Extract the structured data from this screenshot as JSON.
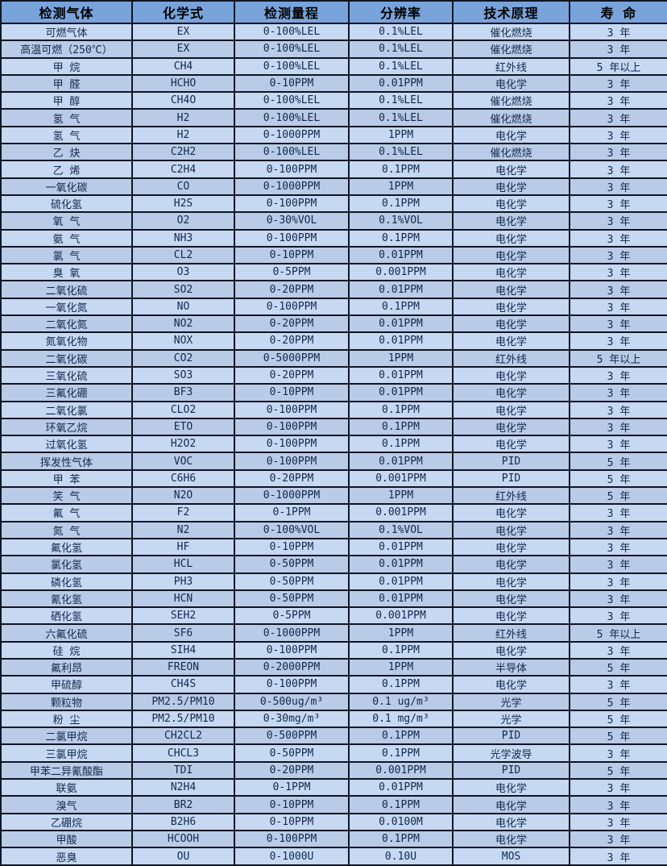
{
  "colors": {
    "header_bg": "#79A3DB",
    "row_light": "#C6D8F2",
    "row_dark": "#B9CBE7",
    "border": "#0E1624",
    "header_text": "#000000",
    "body_text": "#14284B"
  },
  "chart_data": {
    "type": "table",
    "columns": [
      "检测气体",
      "化学式",
      "检测量程",
      "分辨率",
      "技术原理",
      "寿 命"
    ],
    "column_keys": [
      "gas",
      "formula",
      "range",
      "resolution",
      "principle",
      "lifespan"
    ],
    "rows": [
      [
        "可燃气体",
        "EX",
        "0-100%LEL",
        "0.1%LEL",
        "催化燃烧",
        "3 年"
      ],
      [
        "高温可燃（250℃）",
        "EX",
        "0-100%LEL",
        "0.1%LEL",
        "催化燃烧",
        "3 年"
      ],
      [
        "甲 烷",
        "CH4",
        "0-100%LEL",
        "0.1%LEL",
        "红外线",
        "5 年以上"
      ],
      [
        "甲 醛",
        "HCHO",
        "0-10PPM",
        "0.01PPM",
        "电化学",
        "3 年"
      ],
      [
        "甲 醇",
        "CH4O",
        "0-100%LEL",
        "0.1%LEL",
        "催化燃烧",
        "3 年"
      ],
      [
        "氢 气",
        "H2",
        "0-100%LEL",
        "0.1%LEL",
        "催化燃烧",
        "3 年"
      ],
      [
        "氢 气",
        "H2",
        "0-1000PPM",
        "1PPM",
        "电化学",
        "3 年"
      ],
      [
        "乙 炔",
        "C2H2",
        "0-100%LEL",
        "0.1%LEL",
        "催化燃烧",
        "3 年"
      ],
      [
        "乙 烯",
        "C2H4",
        "0-100PPM",
        "0.1PPM",
        "电化学",
        "3 年"
      ],
      [
        "一氧化碳",
        "CO",
        "0-1000PPM",
        "1PPM",
        "电化学",
        "3 年"
      ],
      [
        "硫化氢",
        "H2S",
        "0-100PPM",
        "0.1PPM",
        "电化学",
        "3 年"
      ],
      [
        "氧 气",
        "O2",
        "0-30%VOL",
        "0.1%VOL",
        "电化学",
        "3 年"
      ],
      [
        "氨 气",
        "NH3",
        "0-100PPM",
        "0.1PPM",
        "电化学",
        "3 年"
      ],
      [
        "氯 气",
        "CL2",
        "0-10PPM",
        "0.01PPM",
        "电化学",
        "3 年"
      ],
      [
        "臭 氧",
        "O3",
        "0-5PPM",
        "0.001PPM",
        "电化学",
        "3 年"
      ],
      [
        "二氧化硫",
        "SO2",
        "0-20PPM",
        "0.01PPM",
        "电化学",
        "3 年"
      ],
      [
        "一氧化氮",
        "NO",
        "0-100PPM",
        "0.1PPM",
        "电化学",
        "3 年"
      ],
      [
        "二氧化氮",
        "NO2",
        "0-20PPM",
        "0.01PPM",
        "电化学",
        "3 年"
      ],
      [
        "氮氧化物",
        "NOX",
        "0-20PPM",
        "0.01PPM",
        "电化学",
        "3 年"
      ],
      [
        "二氧化碳",
        "CO2",
        "0-5000PPM",
        "1PPM",
        "红外线",
        "5 年以上"
      ],
      [
        "三氧化硫",
        "SO3",
        "0-20PPM",
        "0.01PPM",
        "电化学",
        "3 年"
      ],
      [
        "三氟化硼",
        "BF3",
        "0-10PPM",
        "0.01PPM",
        "电化学",
        "3 年"
      ],
      [
        "二氧化氯",
        "CLO2",
        "0-100PPM",
        "0.1PPM",
        "电化学",
        "3 年"
      ],
      [
        "环氧乙烷",
        "ETO",
        "0-100PPM",
        "0.1PPM",
        "电化学",
        "3 年"
      ],
      [
        "过氧化氢",
        "H2O2",
        "0-100PPM",
        "0.1PPM",
        "电化学",
        "3 年"
      ],
      [
        "挥发性气体",
        "VOC",
        "0-100PPM",
        "0.01PPM",
        "PID",
        "5 年"
      ],
      [
        "甲 苯",
        "C6H6",
        "0-20PPM",
        "0.001PPM",
        "PID",
        "5 年"
      ],
      [
        "笑 气",
        "N2O",
        "0-1000PPM",
        "1PPM",
        "红外线",
        "5 年"
      ],
      [
        "氟 气",
        "F2",
        "0-1PPM",
        "0.001PPM",
        "电化学",
        "3 年"
      ],
      [
        "氮 气",
        "N2",
        "0-100%VOL",
        "0.1%VOL",
        "电化学",
        "3 年"
      ],
      [
        "氟化氢",
        "HF",
        "0-10PPM",
        "0.01PPM",
        "电化学",
        "3 年"
      ],
      [
        "氯化氢",
        "HCL",
        "0-50PPM",
        "0.01PPM",
        "电化学",
        "3 年"
      ],
      [
        "磷化氢",
        "PH3",
        "0-50PPM",
        "0.01PPM",
        "电化学",
        "3 年"
      ],
      [
        "氰化氢",
        "HCN",
        "0-50PPM",
        "0.01PPM",
        "电化学",
        "3 年"
      ],
      [
        "硒化氢",
        "SEH2",
        "0-5PPM",
        "0.001PPM",
        "电化学",
        "3 年"
      ],
      [
        "六氟化硫",
        "SF6",
        "0-1000PPM",
        "1PPM",
        "红外线",
        "5 年以上"
      ],
      [
        "硅 烷",
        "SIH4",
        "0-100PPM",
        "0.1PPM",
        "电化学",
        "3 年"
      ],
      [
        "氟利昂",
        "FREON",
        "0-2000PPM",
        "1PPM",
        "半导体",
        "5 年"
      ],
      [
        "甲硫醇",
        "CH4S",
        "0-100PPM",
        "0.1PPM",
        "电化学",
        "3 年"
      ],
      [
        "颗粒物",
        "PM2.5/PM10",
        "0-500ug/m³",
        "0.1 ug/m³",
        "光学",
        "5 年"
      ],
      [
        "粉 尘",
        "PM2.5/PM10",
        "0-30mg/m³",
        "0.1 mg/m³",
        "光学",
        "5 年"
      ],
      [
        "二氯甲烷",
        "CH2CL2",
        "0-500PPM",
        "0.1PPM",
        "PID",
        "5 年"
      ],
      [
        "三氯甲烷",
        "CHCL3",
        "0-50PPM",
        "0.1PPM",
        "光学波导",
        "3 年"
      ],
      [
        "甲苯二异氰酸酯",
        "TDI",
        "0-20PPM",
        "0.001PPM",
        "PID",
        "5 年"
      ],
      [
        "联氨",
        "N2H4",
        "0-1PPM",
        "0.01PPM",
        "电化学",
        "3 年"
      ],
      [
        "溴气",
        "BR2",
        "0-10PPM",
        "0.1PPM",
        "电化学",
        "3 年"
      ],
      [
        "乙硼烷",
        "B2H6",
        "0-10PPM",
        "0.0100M",
        "电化学",
        "3 年"
      ],
      [
        "甲酸",
        "HCOOH",
        "0-100PPM",
        "0.1PPM",
        "电化学",
        "3 年"
      ],
      [
        "恶臭",
        "OU",
        "0-1000U",
        "0.10U",
        "MOS",
        "3 年"
      ]
    ]
  }
}
